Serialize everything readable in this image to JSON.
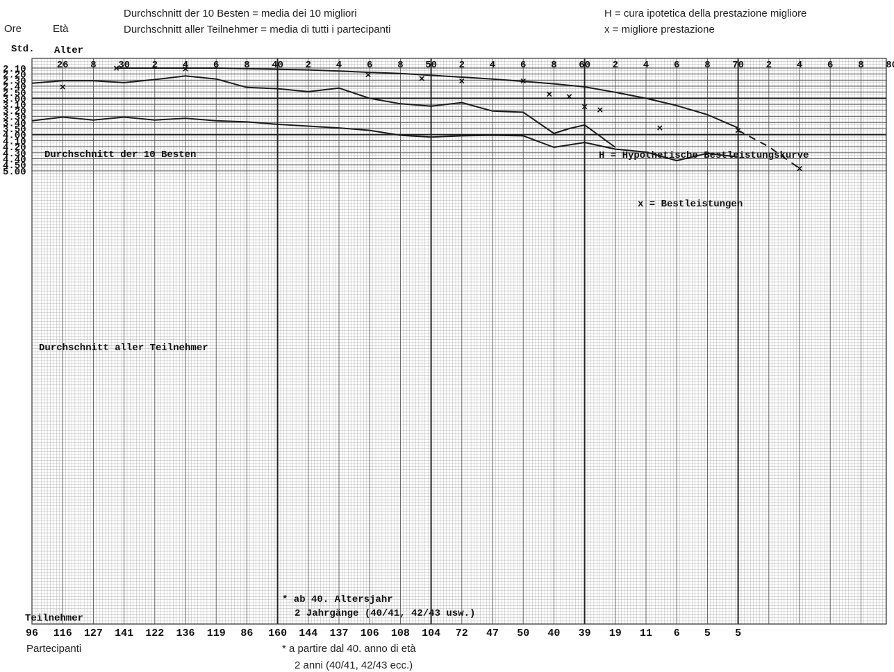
{
  "legend_de_it": {
    "line1": "Durchschnitt der 10 Besten = media dei 10 migliori",
    "line2": "Durchschnitt aller Teilnehmer = media di tutti i partecipanti"
  },
  "legend_h_x": {
    "line1": "H = cura ipotetica della prestazione migliore",
    "line2": "x = migliore prestazione"
  },
  "y_header_it": "Ore",
  "age_header_it": "Età",
  "y_header_de": "Std.",
  "age_header_de": "Alter",
  "participants_label_de": "Teilnehmer",
  "participants_label_it": "Partecipanti",
  "footnote_de": {
    "line1": "* ab 40. Altersjahr",
    "line2": "2 Jahrgänge (40/41, 42/43 usw.)"
  },
  "footnote_it": {
    "line1": "* a partire dal 40. anno di età",
    "line2": "2 anni (40/41, 42/43 ecc.)"
  },
  "chart_data": {
    "type": "line",
    "y_axis_note": "time in hours.minutes, inverted (faster on top)",
    "ylim": [
      "2.10",
      "5.00"
    ],
    "y_ticks": [
      "2.10",
      "2.20",
      "2.30",
      "2.40",
      "2.50",
      "3.00",
      "3.10",
      "3.20",
      "3.30",
      "3.40",
      "3.50",
      "4.00",
      "4.10",
      "4.20",
      "4.30",
      "4.40",
      "4.50",
      "5.00"
    ],
    "age_ticks": [
      "26",
      "8",
      "30",
      "2",
      "4",
      "6",
      "8",
      "40",
      "2",
      "4",
      "6",
      "8",
      "50",
      "2",
      "4",
      "6",
      "8",
      "60",
      "2",
      "4",
      "6",
      "8",
      "70",
      "2",
      "4",
      "6",
      "8",
      "80"
    ],
    "age_tick_values": [
      26,
      28,
      30,
      32,
      34,
      36,
      38,
      40,
      42,
      44,
      46,
      48,
      50,
      52,
      54,
      56,
      58,
      60,
      62,
      64,
      66,
      68,
      70,
      72,
      74,
      76,
      78,
      80
    ],
    "participants": [
      "96",
      "116",
      "127",
      "141",
      "122",
      "136",
      "119",
      "86",
      "160",
      "144",
      "137",
      "106",
      "108",
      "104",
      "72",
      "47",
      "50",
      "40",
      "39",
      "19",
      "11",
      "6",
      "5",
      "5"
    ],
    "participant_ages": [
      24,
      26,
      28,
      30,
      32,
      34,
      36,
      38,
      40,
      42,
      44,
      46,
      48,
      50,
      52,
      54,
      56,
      58,
      60,
      62,
      64,
      66,
      68,
      70
    ],
    "series": [
      {
        "name": "Durchschnitt der 10 Besten",
        "x": [
          24,
          26,
          28,
          30,
          32,
          34,
          36,
          38,
          40,
          42,
          44,
          46,
          48,
          50,
          52,
          54,
          56,
          58,
          59,
          60,
          62
        ],
        "y": [
          "2.35",
          "2.31",
          "2.31",
          "2.34",
          "2.29",
          "2.23",
          "2.28",
          "2.42",
          "2.44",
          "2.49",
          "2.43",
          "3.00",
          "3.09",
          "3.13",
          "3.07",
          "3.21",
          "3.23",
          "3.58",
          "3.50",
          "3.44",
          "4.21"
        ]
      },
      {
        "name": "Durchschnitt aller Teilnehmer",
        "x": [
          24,
          26,
          28,
          30,
          32,
          34,
          36,
          38,
          40,
          42,
          44,
          46,
          48,
          50,
          52,
          54,
          56,
          58,
          60,
          62,
          64,
          66,
          68,
          70
        ],
        "y": [
          "3.37",
          "3.31",
          "3.36",
          "3.31",
          "3.36",
          "3.33",
          "3.37",
          "3.39",
          "3.43",
          "3.46",
          "3.49",
          "3.53",
          "4.01",
          "4.04",
          "4.02",
          "4.01",
          "4.02",
          "4.21",
          "4.13",
          "4.24",
          "4.29",
          "4.43",
          "4.31",
          "4.37"
        ]
      },
      {
        "name": "H = Hypothetische Bestleistungskurve",
        "x": [
          29.5,
          32,
          34,
          36,
          38,
          40,
          42,
          44,
          46,
          48,
          50,
          52,
          54,
          56,
          58,
          60,
          62,
          64,
          66,
          68,
          70
        ],
        "y": [
          "2.10",
          "2.10",
          "2.10",
          "2.10",
          "2.11",
          "2.12",
          "2.13",
          "2.15",
          "2.17",
          "2.19",
          "2.22",
          "2.25",
          "2.28",
          "2.32",
          "2.36",
          "2.41",
          "2.50",
          "3.00",
          "3.12",
          "3.27",
          "3.49"
        ]
      },
      {
        "name": "H (extrapolated)",
        "x": [
          70,
          72,
          74
        ],
        "y": [
          "3.53",
          "4.20",
          "4.56"
        ]
      },
      {
        "name": "x = Bestleistungen",
        "type": "scatter",
        "x": [
          29.5,
          34,
          26,
          45.9,
          49.4,
          52,
          56,
          57.7,
          59,
          60,
          61,
          64.9,
          70,
          74
        ],
        "y": [
          "2.10",
          "2.11",
          "2.41",
          "2.21",
          "2.27",
          "2.31",
          "2.31",
          "2.53",
          "2.57",
          "3.14",
          "3.19",
          "3.49",
          "3.53",
          "4.56"
        ]
      }
    ]
  }
}
